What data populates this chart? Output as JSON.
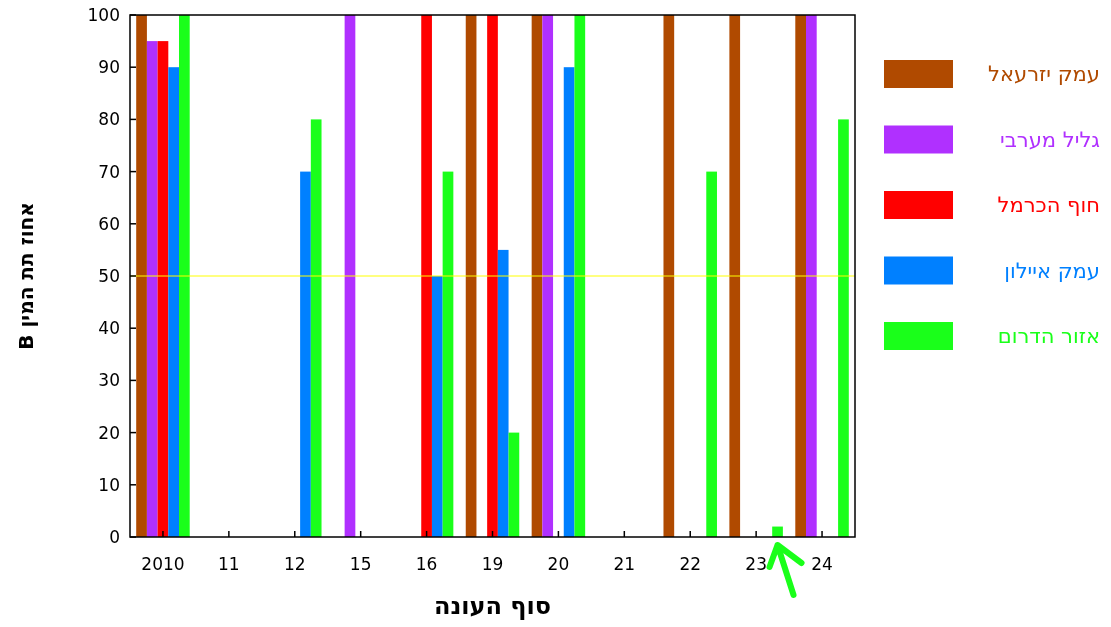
{
  "chart_data": {
    "type": "bar",
    "xlabel": "סוף העונה",
    "ylabel": "אחוז תת המין B",
    "categories": [
      "2010",
      "11",
      "12",
      "15",
      "16",
      "19",
      "20",
      "21",
      "22",
      "23",
      "24"
    ],
    "series": [
      {
        "name": "עמק יזרעאל",
        "color": "#b04a00",
        "values": [
          100,
          0,
          0,
          0,
          0,
          100,
          100,
          0,
          100,
          100,
          100
        ]
      },
      {
        "name": "גליל מערבי",
        "color": "#b030ff",
        "values": [
          95,
          0,
          0,
          100,
          0,
          0,
          100,
          0,
          0,
          0,
          100
        ]
      },
      {
        "name": "חוף הכרמל",
        "color": "#ff0000",
        "values": [
          95,
          0,
          0,
          0,
          100,
          100,
          0,
          0,
          0,
          0,
          0
        ]
      },
      {
        "name": "עמק איילון",
        "color": "#0080ff",
        "values": [
          90,
          0,
          70,
          0,
          50,
          55,
          90,
          0,
          0,
          0,
          0
        ]
      },
      {
        "name": "אזור הדרום",
        "color": "#1aff1a",
        "values": [
          100,
          0,
          80,
          0,
          70,
          20,
          100,
          0,
          70,
          2,
          80
        ]
      }
    ],
    "ylim": [
      0,
      100
    ],
    "yticks": [
      0,
      10,
      20,
      30,
      40,
      50,
      60,
      70,
      80,
      90,
      100
    ],
    "ref_lines": [
      {
        "axis": "y",
        "value": 50,
        "color": "#ffff00"
      }
    ],
    "legend": "right",
    "grid": false
  }
}
